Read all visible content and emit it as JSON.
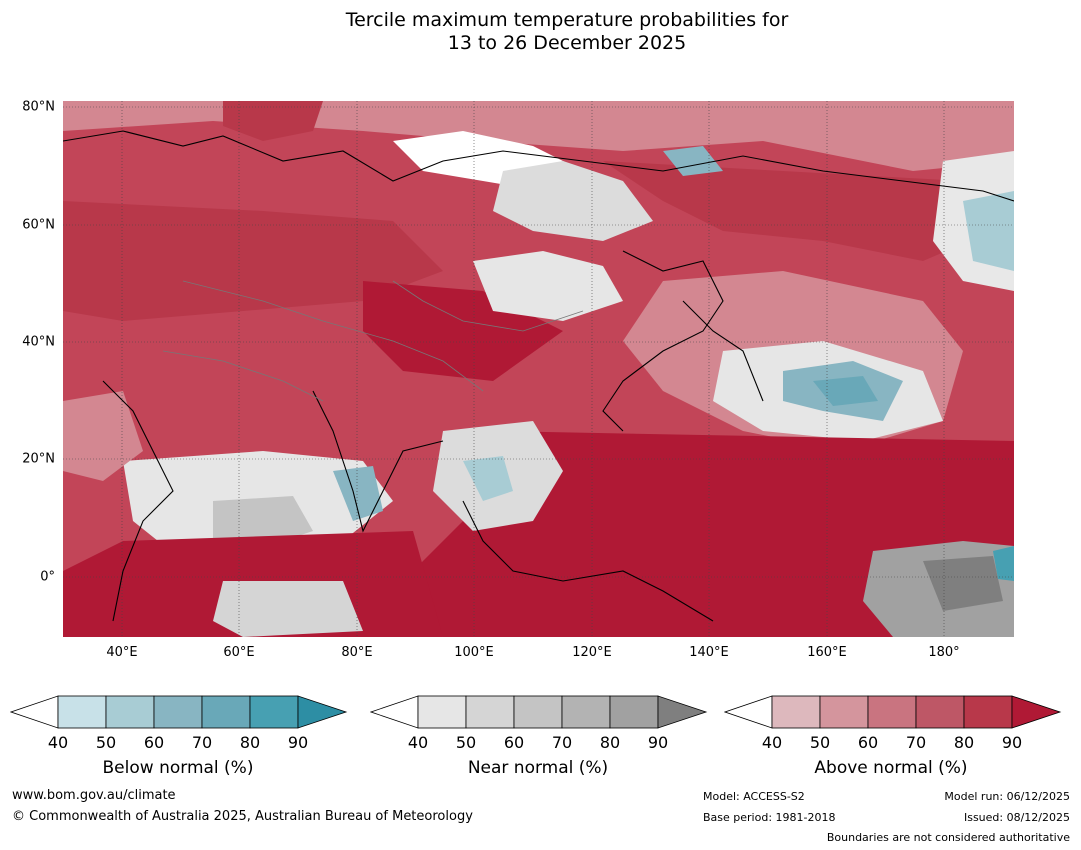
{
  "title_line1": "Tercile maximum temperature probabilities for",
  "title_line2": "13 to 26 December 2025",
  "lat_labels": [
    "80°N",
    "60°N",
    "40°N",
    "20°N",
    "0°"
  ],
  "lon_labels": [
    "40°E",
    "60°E",
    "80°E",
    "100°E",
    "120°E",
    "140°E",
    "160°E",
    "180°"
  ],
  "legend": {
    "below": {
      "title": "Below normal (%)",
      "ticks": [
        "40",
        "50",
        "60",
        "70",
        "80",
        "90"
      ],
      "colors": [
        "#ffffff",
        "#c8e1e8",
        "#a8ccd4",
        "#88b5c2",
        "#69a8b8",
        "#47a0b2",
        "#2d8ea4"
      ]
    },
    "near": {
      "title": "Near normal (%)",
      "ticks": [
        "40",
        "50",
        "60",
        "70",
        "80",
        "90"
      ],
      "colors": [
        "#ffffff",
        "#e6e6e6",
        "#d5d5d5",
        "#c4c4c4",
        "#b3b3b3",
        "#a1a1a1",
        "#7f7f7f"
      ]
    },
    "above": {
      "title": "Above normal (%)",
      "ticks": [
        "40",
        "50",
        "60",
        "70",
        "80",
        "90"
      ],
      "colors": [
        "#ffffff",
        "#ddb8bd",
        "#d4959d",
        "#c97480",
        "#be5766",
        "#b8384a",
        "#b01935"
      ]
    }
  },
  "footer": {
    "website": "www.bom.gov.au/climate",
    "copyright": "© Commonwealth of Australia 2025, Australian Bureau of Meteorology",
    "model": "Model: ACCESS-S2",
    "base_period": "Base period: 1981-2018",
    "model_run": "Model run: 06/12/2025",
    "issued": "Issued: 08/12/2025",
    "boundaries": "Boundaries are not considered authoritative"
  }
}
